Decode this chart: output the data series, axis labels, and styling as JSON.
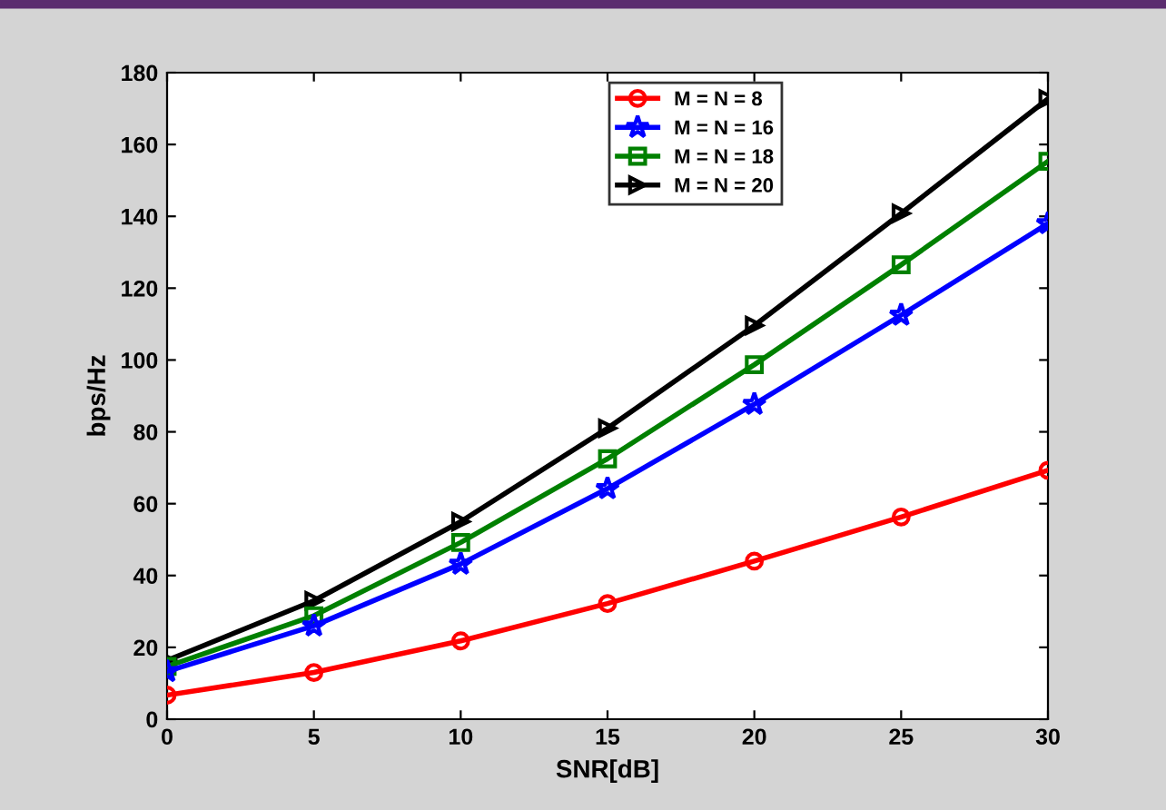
{
  "chart_data": {
    "type": "line",
    "xlabel": "SNR[dB]",
    "ylabel": "bps/Hz",
    "x": [
      0,
      5,
      10,
      15,
      20,
      25,
      30
    ],
    "series": [
      {
        "name": "M = N = 8",
        "color": "#ff0000",
        "marker": "circle",
        "values": [
          6.7,
          13,
          21.8,
          32.2,
          44,
          56.3,
          69.3
        ]
      },
      {
        "name": "M = N = 16",
        "color": "#0000ff",
        "marker": "star",
        "values": [
          13.3,
          26,
          43.2,
          64.2,
          87.7,
          112.5,
          138
        ]
      },
      {
        "name": "M = N = 18",
        "color": "#008000",
        "marker": "square",
        "values": [
          14.7,
          28.8,
          49.2,
          72.5,
          98.7,
          126.5,
          155.3
        ]
      },
      {
        "name": "M = N = 20",
        "color": "#000000",
        "marker": "triangle",
        "values": [
          16.4,
          33,
          55,
          81,
          109.6,
          140.8,
          172.7
        ]
      }
    ],
    "xlim": [
      0,
      30
    ],
    "xticks": [
      0,
      5,
      10,
      15,
      20,
      25,
      30
    ],
    "ylim": [
      0,
      180
    ],
    "yticks": [
      0,
      20,
      40,
      60,
      80,
      100,
      120,
      140,
      160,
      180
    ],
    "grid": false,
    "legend": "top",
    "line_style": "solid"
  }
}
